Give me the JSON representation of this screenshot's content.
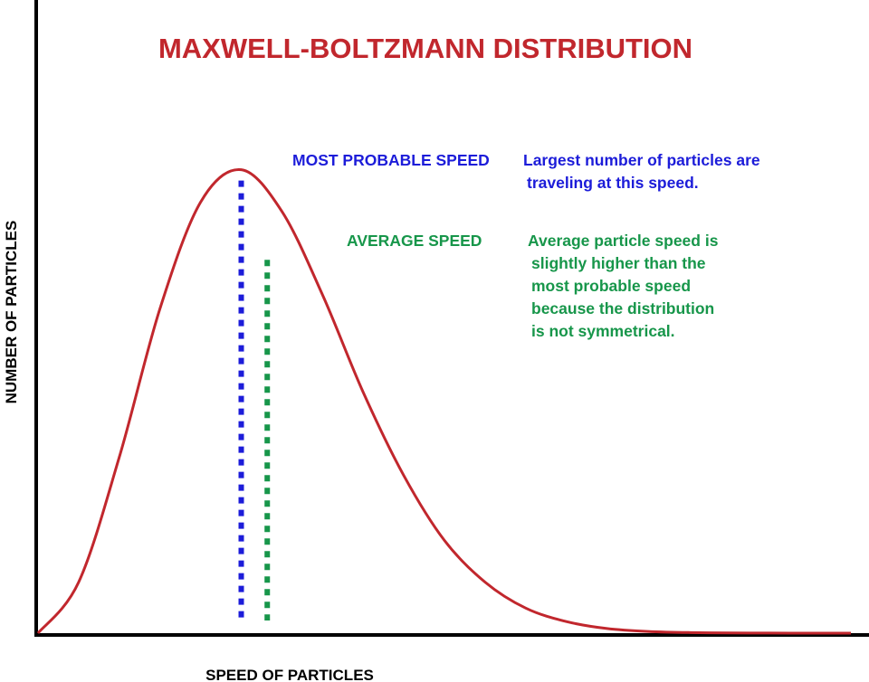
{
  "chart_data": {
    "type": "line",
    "title": "MAXWELL-BOLTZMANN DISTRIBUTION",
    "xlabel": "SPEED OF PARTICLES",
    "ylabel": "NUMBER OF PARTICLES",
    "xlim": [
      0,
      4
    ],
    "ylim": [
      0,
      1.05
    ],
    "grid": false,
    "legend": "none",
    "series": [
      {
        "values_x": [
          0,
          0.2,
          0.4,
          0.6,
          0.8,
          1.0,
          1.2,
          1.4,
          1.6,
          1.8,
          2.0,
          2.2,
          2.4,
          2.6,
          2.8,
          3.0,
          3.2,
          3.4,
          3.6,
          3.8,
          4.0
        ],
        "values_y": [
          0,
          0.11,
          0.38,
          0.7,
          0.93,
          1.0,
          0.91,
          0.73,
          0.52,
          0.34,
          0.2,
          0.11,
          0.054,
          0.025,
          0.01,
          0.0037,
          0.0013,
          0.0004,
          0.0001,
          0.0,
          0.0
        ]
      }
    ],
    "markers": [
      {
        "label": "MOST PROBABLE SPEED",
        "x": 1.0,
        "y": 1.0,
        "note": [
          "Largest number of particles are",
          "traveling at this speed."
        ]
      },
      {
        "label": "AVERAGE SPEED",
        "x": 1.128,
        "y": 0.825,
        "note": [
          "Average particle speed is",
          "slightly higher than the",
          "most probable speed",
          "because the distribution",
          "is not symmetrical."
        ]
      }
    ]
  },
  "colors": {
    "curve": "#c1272d",
    "title": "#c1272d",
    "most_probable": "#1c1cd9",
    "average": "#17964a",
    "axis": "#000000"
  }
}
